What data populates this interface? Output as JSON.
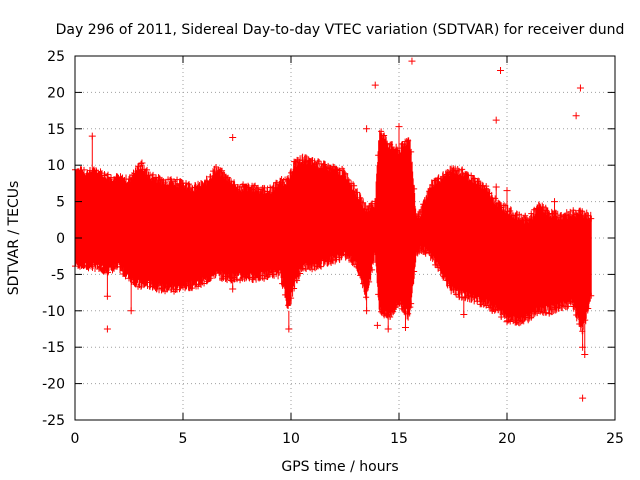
{
  "chart_data": {
    "type": "scatter",
    "title": "Day 296 of 2011, Sidereal Day-to-day VTEC variation (SDTVAR) for receiver dund",
    "xlabel": "GPS time / hours",
    "ylabel": "SDTVAR / TECUs",
    "xlim": [
      0,
      25
    ],
    "ylim": [
      -25,
      25
    ],
    "xticks": [
      "0",
      "5",
      "10",
      "15",
      "20",
      "25"
    ],
    "yticks": [
      "25",
      "20",
      "15",
      "10",
      "5",
      "0",
      "-5",
      "-10",
      "-15",
      "-20",
      "-25"
    ],
    "grid": true,
    "marker": "+",
    "series_color": "#ff0000",
    "envelope": {
      "x": [
        0.0,
        0.5,
        1.0,
        1.5,
        2.0,
        2.5,
        3.0,
        3.5,
        4.0,
        4.5,
        5.0,
        5.5,
        6.0,
        6.5,
        7.0,
        7.5,
        8.0,
        8.5,
        9.0,
        9.5,
        9.9,
        10.1,
        10.5,
        11.0,
        11.5,
        12.0,
        12.5,
        13.0,
        13.5,
        13.9,
        14.1,
        14.5,
        15.0,
        15.5,
        15.8,
        16.0,
        16.5,
        17.0,
        17.5,
        18.0,
        18.5,
        19.0,
        19.5,
        20.0,
        20.5,
        21.0,
        21.5,
        22.0,
        22.5,
        23.0,
        23.5,
        23.9
      ],
      "upper": [
        9.5,
        9.0,
        9.3,
        8.5,
        8.3,
        8.0,
        10.0,
        8.5,
        8.0,
        7.8,
        7.5,
        7.0,
        7.5,
        9.5,
        8.5,
        7.0,
        7.0,
        6.8,
        6.5,
        7.8,
        8.0,
        10.0,
        11.0,
        10.5,
        10.0,
        9.5,
        9.0,
        6.5,
        4.0,
        5.0,
        15.0,
        13.0,
        12.0,
        14.0,
        3.0,
        3.5,
        7.5,
        8.5,
        9.5,
        9.0,
        8.0,
        7.0,
        5.0,
        4.0,
        3.0,
        2.5,
        4.5,
        3.5,
        3.0,
        3.5,
        3.5,
        3.0
      ],
      "lower": [
        -3.5,
        -4.0,
        -4.0,
        -4.5,
        -4.0,
        -5.5,
        -6.5,
        -6.5,
        -7.0,
        -7.0,
        -6.8,
        -6.5,
        -6.0,
        -5.0,
        -5.5,
        -5.5,
        -5.5,
        -5.5,
        -5.0,
        -5.0,
        -10.0,
        -7.0,
        -4.0,
        -4.0,
        -3.5,
        -3.0,
        -2.5,
        -3.5,
        -8.0,
        -2.0,
        -10.0,
        -11.0,
        -9.0,
        -11.0,
        -2.0,
        -1.5,
        -2.5,
        -5.0,
        -7.5,
        -8.0,
        -8.5,
        -9.0,
        -10.0,
        -11.0,
        -11.5,
        -11.0,
        -10.0,
        -10.0,
        -9.5,
        -9.0,
        -13.0,
        -8.0
      ]
    },
    "spikes": [
      {
        "x": 0.8,
        "y": 14.0
      },
      {
        "x": 1.5,
        "y": -8.0
      },
      {
        "x": 1.5,
        "y": -12.5
      },
      {
        "x": 2.6,
        "y": -10.0
      },
      {
        "x": 3.1,
        "y": 10.3
      },
      {
        "x": 7.3,
        "y": 13.8
      },
      {
        "x": 7.3,
        "y": -7.0
      },
      {
        "x": 9.9,
        "y": -12.5
      },
      {
        "x": 13.5,
        "y": 15.0
      },
      {
        "x": 13.5,
        "y": -10.0
      },
      {
        "x": 13.9,
        "y": 21.0
      },
      {
        "x": 14.0,
        "y": -12.0
      },
      {
        "x": 14.5,
        "y": -12.5
      },
      {
        "x": 15.0,
        "y": 15.3
      },
      {
        "x": 15.3,
        "y": -12.3
      },
      {
        "x": 15.6,
        "y": 24.3
      },
      {
        "x": 15.5,
        "y": -9.5
      },
      {
        "x": 19.5,
        "y": 16.2
      },
      {
        "x": 19.7,
        "y": 23.0
      },
      {
        "x": 20.0,
        "y": 6.5
      },
      {
        "x": 19.5,
        "y": 7.0
      },
      {
        "x": 22.2,
        "y": 5.0
      },
      {
        "x": 23.2,
        "y": 16.8
      },
      {
        "x": 23.4,
        "y": 20.6
      },
      {
        "x": 23.5,
        "y": -15.0
      },
      {
        "x": 23.6,
        "y": -16.0
      },
      {
        "x": 23.5,
        "y": -22.0
      },
      {
        "x": 20.0,
        "y": -11.5
      },
      {
        "x": 18.0,
        "y": -10.5
      }
    ]
  }
}
